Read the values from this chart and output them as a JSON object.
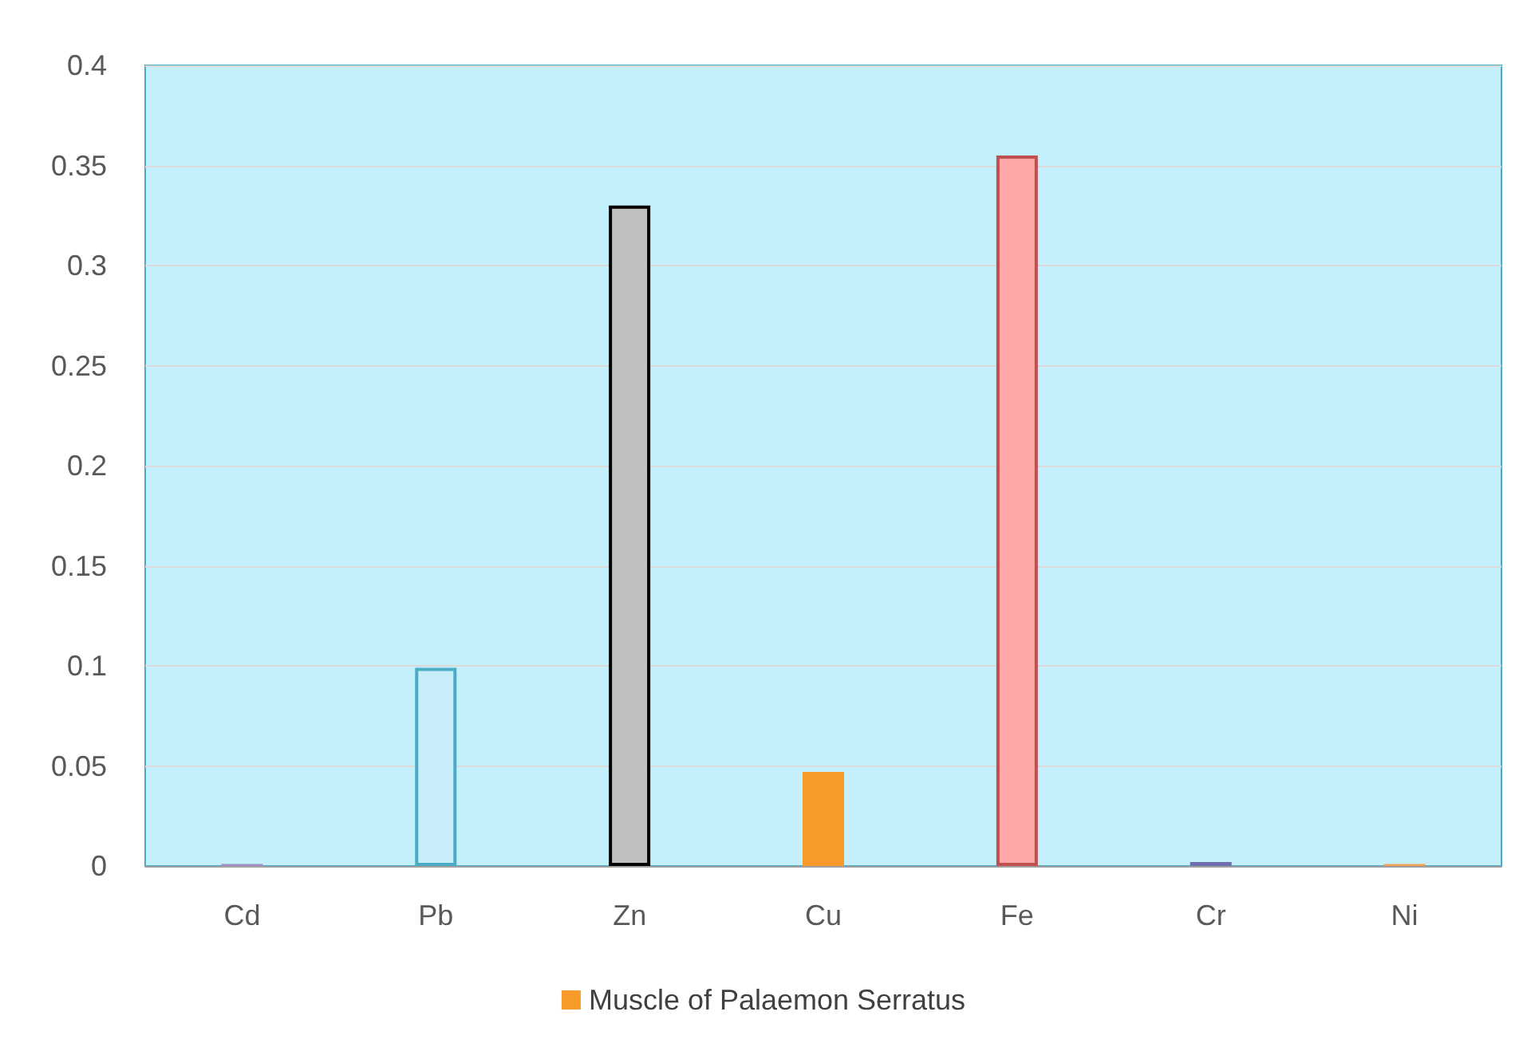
{
  "chart_data": {
    "type": "bar",
    "categories": [
      "Cd",
      "Pb",
      "Zn",
      "Cu",
      "Fe",
      "Cr",
      "Ni"
    ],
    "series": [
      {
        "name": "Muscle of Palaemon Serratus",
        "color": "#f79a2a",
        "values": [
          0.001,
          0.099,
          0.33,
          0.047,
          0.355,
          0.002,
          0.001
        ],
        "colors": [
          "#9b8fc0",
          "#c8eefa",
          "#c0c0c0",
          "#f79a2a",
          "#ffa8a8",
          "#7070b0",
          "#f0a050"
        ]
      }
    ],
    "ylim": [
      0,
      0.4
    ],
    "yticks": [
      0,
      0.05,
      0.1,
      0.15,
      0.2,
      0.25,
      0.3,
      0.35,
      0.4
    ],
    "grid": "y",
    "legend": "bottom"
  }
}
